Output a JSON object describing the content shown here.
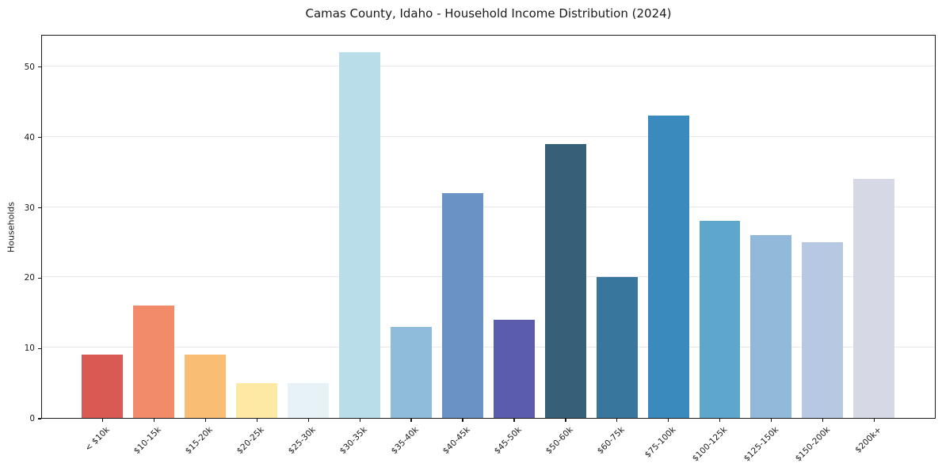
{
  "title": "Camas County, Idaho - Household Income Distribution (2024)",
  "chart_data": {
    "type": "bar",
    "title": "Camas County, Idaho - Household Income Distribution (2024)",
    "xlabel": "",
    "ylabel": "Households",
    "categories": [
      "< $10k",
      "$10-15k",
      "$15-20k",
      "$20-25k",
      "$25-30k",
      "$30-35k",
      "$35-40k",
      "$40-45k",
      "$45-50k",
      "$50-60k",
      "$60-75k",
      "$75-100k",
      "$100-125k",
      "$125-150k",
      "$150-200k",
      "$200k+"
    ],
    "values": [
      9,
      16,
      9,
      5,
      5,
      52,
      13,
      32,
      14,
      39,
      20,
      43,
      28,
      26,
      25,
      34
    ],
    "bar_colors": [
      "#d95a52",
      "#f28b69",
      "#f9bd74",
      "#fde8a4",
      "#e7f2f6",
      "#b9dde9",
      "#8ebcda",
      "#6b92c4",
      "#5b5cab",
      "#365f78",
      "#38769e",
      "#3a8abe",
      "#5fa6cd",
      "#92b9da",
      "#b7c9e2",
      "#d7d8e6"
    ],
    "ylim": [
      0,
      54.6
    ],
    "yticks": [
      0,
      10,
      20,
      30,
      40,
      50
    ],
    "grid": "horizontal-light",
    "legend": "none",
    "background": "#ffffff",
    "spine_color": "#1a1a1a",
    "grid_color": "#e8e8e8"
  }
}
